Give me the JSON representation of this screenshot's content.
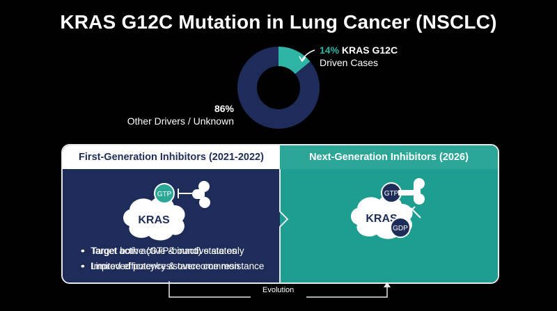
{
  "title": "KRAS G12C Mutation in Lung Cancer (NSCLC)",
  "donut": {
    "segments": [
      {
        "percent": 14,
        "label_pct": "14%",
        "label_bold": "KRAS G12C",
        "label_rest": "Driven Cases",
        "color": "#2fb5a6"
      },
      {
        "percent": 86,
        "label_pct": "86%",
        "label_text": "Other Drivers / Unknown",
        "color": "#1e2c5a"
      }
    ]
  },
  "left_panel": {
    "title": "First-Generation Inhibitors (2021-2022)",
    "protein": "KRAS",
    "nucleotide": "GTP",
    "bullets": [
      "Target active (GTP-bound) state only",
      "Limited efficacy/resistance common"
    ]
  },
  "right_panel": {
    "title": "Next-Generation Inhibitors (2026)",
    "protein": "KRAS",
    "nucleotide_top": "GTP",
    "nucleotide_bottom": "GDP",
    "bullets": [
      "Target both active & inactive states",
      "Improved potency & overcome resistance"
    ]
  },
  "evolution_label": "Evolution",
  "colors": {
    "navy": "#1e2c5a",
    "teal": "#1e9e90",
    "teal_header": "#2ba697",
    "accent": "#2fb5a6"
  }
}
